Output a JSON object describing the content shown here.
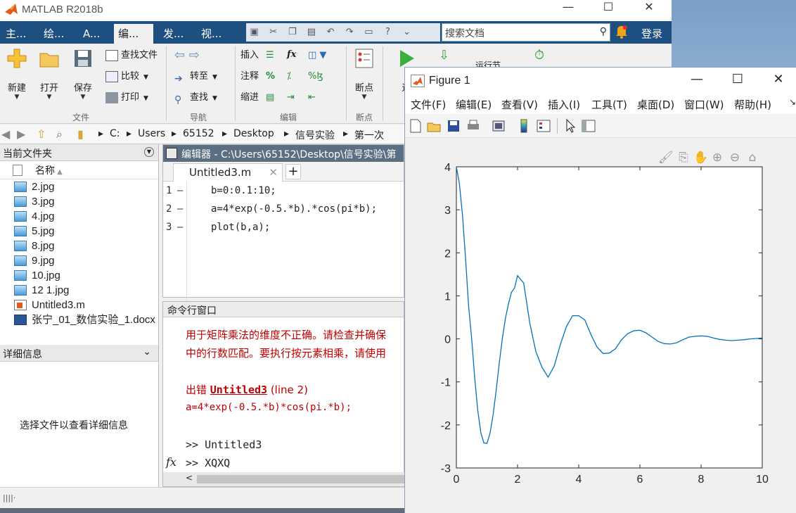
{
  "matlab": {
    "title": "MATLAB R2018b",
    "tabs": [
      "主...",
      "绘...",
      "A...",
      "编...",
      "发...",
      "视..."
    ],
    "search_placeholder": "搜索文档",
    "login": "登录",
    "ribbon": {
      "file": {
        "new": "新建",
        "open": "打开",
        "save": "保存",
        "find_files": "查找文件",
        "compare": "比较",
        "print": "打印",
        "label": "文件"
      },
      "nav": {
        "goto": "转至",
        "find": "查找",
        "label": "导航"
      },
      "edit": {
        "insert": "插入",
        "comment": "注释",
        "indent": "缩进",
        "fx": "fx",
        "label": "编辑"
      },
      "breakpoints": {
        "breakpoint": "断点",
        "label": "断点"
      },
      "run": {
        "run": "运",
        "run_section": "运行节"
      }
    },
    "path": [
      "C:",
      "Users",
      "65152",
      "Desktop",
      "信号实验",
      "第一次"
    ],
    "folder": {
      "title": "当前文件夹",
      "column": "名称",
      "files": [
        "2.jpg",
        "3.jpg",
        "4.jpg",
        "5.jpg",
        "8.jpg",
        "9.jpg",
        "10.jpg",
        "12 1.jpg",
        "Untitled3.m",
        "张宁_01_数信实验_1.docx"
      ]
    },
    "details": {
      "title": "详细信息",
      "message": "选择文件以查看详细信息"
    },
    "editor": {
      "header": "编辑器 - C:\\Users\\65152\\Desktop\\信号实验\\第",
      "tab": "Untitled3.m",
      "line_numbers": [
        "1",
        "2",
        "3"
      ],
      "lines": [
        "b=0:0.1:10;",
        "a=4*exp(-0.5.*b).*cos(pi*b);",
        "plot(b,a);"
      ]
    },
    "command": {
      "title": "命令行窗口",
      "err1": "用于矩阵乘法的维度不正确。请检查并确保",
      "err2": "中的行数匹配。要执行按元素相乘，请使用",
      "err_prefix": "出错 ",
      "err_file": "Untitled3",
      "err_loc": " (line 2)",
      "err_code": "a=4*exp(-0.5.*b)*cos(pi.*b);",
      "prompt1": ">> Untitled3",
      "prompt2": ">> XQXQ"
    }
  },
  "figure": {
    "title": "Figure 1",
    "menu": [
      "文件(F)",
      "编辑(E)",
      "查看(V)",
      "插入(I)",
      "工具(T)",
      "桌面(D)",
      "窗口(W)",
      "帮助(H)"
    ],
    "line_color": "#0072bd"
  },
  "chart_data": {
    "type": "line",
    "x": [
      0,
      0.1,
      0.2,
      0.3,
      0.4,
      0.5,
      0.6,
      0.7,
      0.8,
      0.9,
      1.0,
      1.1,
      1.2,
      1.3,
      1.4,
      1.5,
      1.6,
      1.7,
      1.8,
      1.9,
      2.0,
      2.2,
      2.4,
      2.6,
      2.8,
      3.0,
      3.2,
      3.4,
      3.6,
      3.8,
      4.0,
      4.2,
      4.4,
      4.6,
      4.8,
      5.0,
      5.2,
      5.4,
      5.6,
      5.8,
      6.0,
      6.2,
      6.4,
      6.6,
      6.8,
      7.0,
      7.2,
      7.4,
      7.6,
      7.8,
      8.0,
      8.2,
      8.4,
      8.6,
      8.8,
      9.0,
      9.2,
      9.4,
      9.6,
      9.8,
      10.0
    ],
    "y": [
      4.0,
      3.61,
      2.88,
      1.89,
      0.76,
      0.0,
      -0.91,
      -1.66,
      -2.18,
      -2.42,
      -2.43,
      -2.19,
      -1.77,
      -1.2,
      -0.58,
      0.0,
      0.46,
      0.8,
      1.08,
      1.18,
      1.47,
      1.3,
      0.37,
      -0.3,
      -0.66,
      -0.89,
      -0.63,
      -0.13,
      0.29,
      0.54,
      0.54,
      0.44,
      0.1,
      -0.19,
      -0.34,
      -0.33,
      -0.23,
      -0.02,
      0.12,
      0.19,
      0.2,
      0.14,
      0.04,
      -0.06,
      -0.11,
      -0.12,
      -0.09,
      -0.02,
      0.04,
      0.06,
      0.07,
      0.06,
      0.02,
      -0.01,
      -0.03,
      -0.04,
      -0.03,
      -0.02,
      0.0,
      0.01,
      0.02
    ],
    "xlim": [
      0,
      10
    ],
    "ylim": [
      -3,
      4
    ],
    "xticks": [
      "0",
      "2",
      "4",
      "6",
      "8",
      "10"
    ],
    "yticks": [
      "4",
      "3",
      "2",
      "1",
      "0",
      "-1",
      "-2",
      "-3"
    ],
    "grid": false
  }
}
